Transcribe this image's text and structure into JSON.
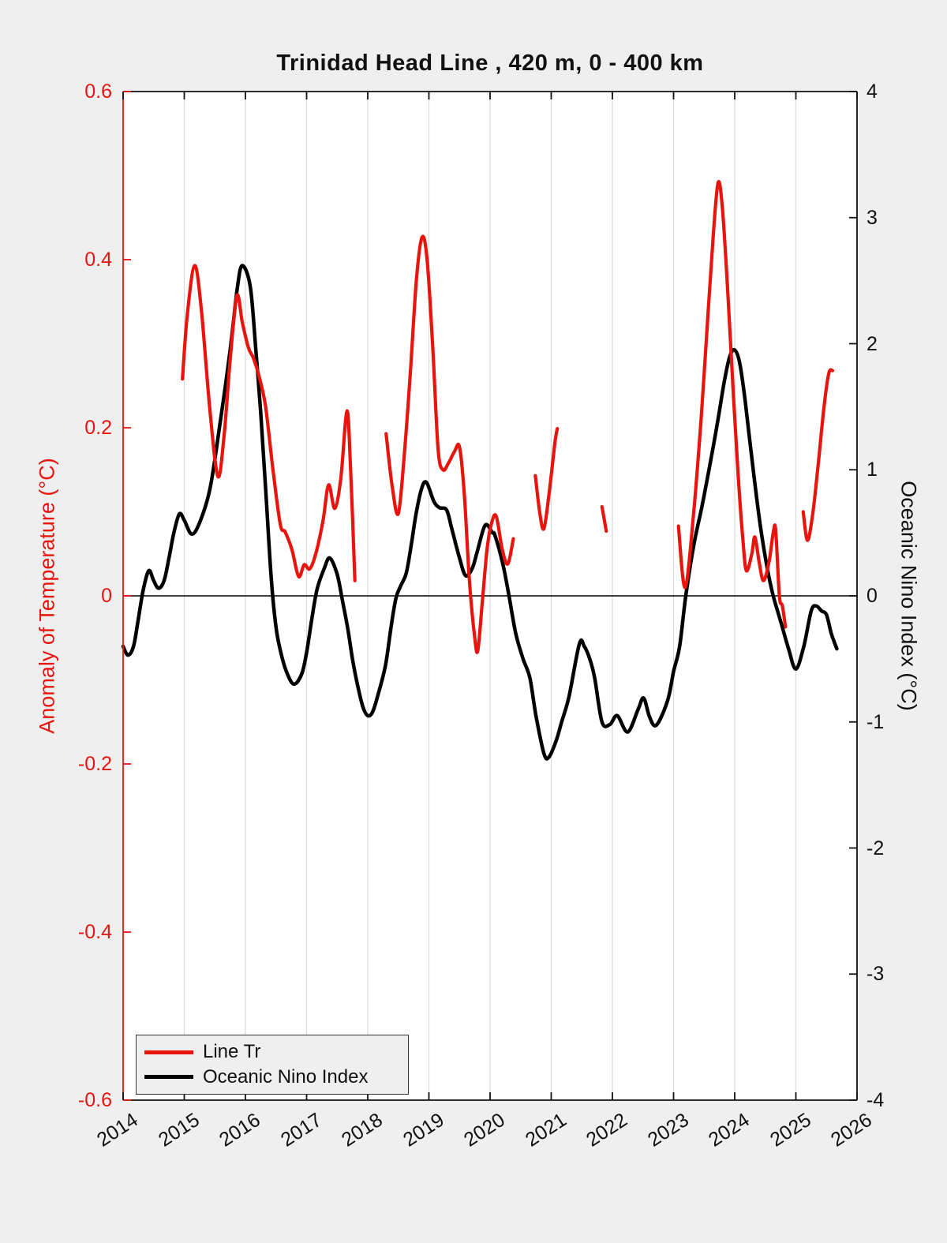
{
  "chart_data": {
    "type": "line",
    "title": "Trinidad Head Line , 420 m, 0 - 400 km",
    "background_color": "#efefef",
    "plot_background": "#ffffff",
    "grid": {
      "vertical": true,
      "horizontal": false,
      "color": "#d9d9d9"
    },
    "zero_line": {
      "shown": true,
      "color": "#000000"
    },
    "x_axis": {
      "range": [
        2014,
        2026
      ],
      "ticks": [
        2014,
        2015,
        2016,
        2017,
        2018,
        2019,
        2020,
        2021,
        2022,
        2023,
        2024,
        2025,
        2026
      ],
      "tick_labels": [
        "2014",
        "2015",
        "2016",
        "2017",
        "2018",
        "2019",
        "2020",
        "2021",
        "2022",
        "2023",
        "2024",
        "2025",
        "2026"
      ],
      "tick_rotation_deg": -33
    },
    "y_left": {
      "label": "Anomaly of Temperature (°C)",
      "color": "#e8150f",
      "range": [
        -0.6,
        0.6
      ],
      "ticks": [
        0.6,
        0.4,
        0.2,
        0,
        -0.2,
        -0.4,
        -0.6
      ],
      "tick_labels": [
        "0.6",
        "0.4",
        "0.2",
        "0",
        "-0.2",
        "-0.4",
        "-0.6"
      ]
    },
    "y_right": {
      "label": "Oceanic Nino Index (°C)",
      "color": "#111111",
      "range": [
        -4,
        4
      ],
      "ticks": [
        4,
        3,
        2,
        1,
        0,
        -1,
        -2,
        -3,
        -4
      ],
      "tick_labels": [
        "4",
        "3",
        "2",
        "1",
        "0",
        "-1",
        "-2",
        "-3",
        "-4"
      ]
    },
    "legend": {
      "position": "bottom-left",
      "entries": [
        {
          "label": "Line Tr",
          "color": "#e8150f"
        },
        {
          "label": "Oceanic Nino Index",
          "color": "#000000"
        }
      ]
    },
    "series": [
      {
        "name": "Oceanic Nino Index",
        "axis": "right",
        "color": "#000000",
        "width": 4.5,
        "segments": [
          [
            [
              2014.0,
              -0.4
            ],
            [
              2014.08,
              -0.47
            ],
            [
              2014.17,
              -0.4
            ],
            [
              2014.25,
              -0.18
            ],
            [
              2014.33,
              0.05
            ],
            [
              2014.42,
              0.2
            ],
            [
              2014.5,
              0.12
            ],
            [
              2014.58,
              0.06
            ],
            [
              2014.67,
              0.12
            ],
            [
              2014.75,
              0.3
            ],
            [
              2014.83,
              0.5
            ],
            [
              2014.92,
              0.65
            ],
            [
              2015.0,
              0.6
            ],
            [
              2015.12,
              0.49
            ],
            [
              2015.25,
              0.58
            ],
            [
              2015.42,
              0.85
            ],
            [
              2015.58,
              1.35
            ],
            [
              2015.75,
              1.95
            ],
            [
              2015.87,
              2.45
            ],
            [
              2015.95,
              2.62
            ],
            [
              2016.08,
              2.45
            ],
            [
              2016.17,
              1.95
            ],
            [
              2016.25,
              1.45
            ],
            [
              2016.33,
              0.85
            ],
            [
              2016.42,
              0.15
            ],
            [
              2016.5,
              -0.25
            ],
            [
              2016.58,
              -0.45
            ],
            [
              2016.67,
              -0.6
            ],
            [
              2016.79,
              -0.7
            ],
            [
              2016.92,
              -0.62
            ],
            [
              2017.0,
              -0.45
            ],
            [
              2017.08,
              -0.2
            ],
            [
              2017.17,
              0.05
            ],
            [
              2017.29,
              0.22
            ],
            [
              2017.38,
              0.3
            ],
            [
              2017.5,
              0.17
            ],
            [
              2017.58,
              -0.02
            ],
            [
              2017.67,
              -0.25
            ],
            [
              2017.75,
              -0.5
            ],
            [
              2017.83,
              -0.7
            ],
            [
              2017.92,
              -0.88
            ],
            [
              2018.0,
              -0.95
            ],
            [
              2018.08,
              -0.92
            ],
            [
              2018.17,
              -0.78
            ],
            [
              2018.29,
              -0.55
            ],
            [
              2018.38,
              -0.25
            ],
            [
              2018.46,
              -0.02
            ],
            [
              2018.54,
              0.08
            ],
            [
              2018.63,
              0.18
            ],
            [
              2018.71,
              0.4
            ],
            [
              2018.79,
              0.65
            ],
            [
              2018.88,
              0.85
            ],
            [
              2018.96,
              0.9
            ],
            [
              2019.08,
              0.75
            ],
            [
              2019.17,
              0.7
            ],
            [
              2019.29,
              0.68
            ],
            [
              2019.38,
              0.52
            ],
            [
              2019.5,
              0.3
            ],
            [
              2019.6,
              0.16
            ],
            [
              2019.71,
              0.22
            ],
            [
              2019.79,
              0.35
            ],
            [
              2019.92,
              0.56
            ],
            [
              2020.04,
              0.5
            ],
            [
              2020.08,
              0.48
            ],
            [
              2020.21,
              0.25
            ],
            [
              2020.31,
              0.0
            ],
            [
              2020.42,
              -0.3
            ],
            [
              2020.54,
              -0.5
            ],
            [
              2020.65,
              -0.65
            ],
            [
              2020.75,
              -0.95
            ],
            [
              2020.88,
              -1.25
            ],
            [
              2020.96,
              -1.28
            ],
            [
              2021.08,
              -1.15
            ],
            [
              2021.17,
              -1.0
            ],
            [
              2021.29,
              -0.8
            ],
            [
              2021.46,
              -0.38
            ],
            [
              2021.54,
              -0.4
            ],
            [
              2021.63,
              -0.5
            ],
            [
              2021.71,
              -0.65
            ],
            [
              2021.83,
              -1.0
            ],
            [
              2021.96,
              -1.02
            ],
            [
              2022.08,
              -0.95
            ],
            [
              2022.25,
              -1.08
            ],
            [
              2022.42,
              -0.9
            ],
            [
              2022.51,
              -0.81
            ],
            [
              2022.6,
              -0.95
            ],
            [
              2022.69,
              -1.03
            ],
            [
              2022.79,
              -0.97
            ],
            [
              2022.92,
              -0.8
            ],
            [
              2023.0,
              -0.6
            ],
            [
              2023.1,
              -0.4
            ],
            [
              2023.2,
              0.0
            ],
            [
              2023.33,
              0.4
            ],
            [
              2023.46,
              0.7
            ],
            [
              2023.58,
              1.0
            ],
            [
              2023.71,
              1.35
            ],
            [
              2023.83,
              1.7
            ],
            [
              2023.92,
              1.9
            ],
            [
              2024.0,
              1.95
            ],
            [
              2024.08,
              1.85
            ],
            [
              2024.17,
              1.55
            ],
            [
              2024.29,
              1.05
            ],
            [
              2024.42,
              0.55
            ],
            [
              2024.54,
              0.2
            ],
            [
              2024.63,
              0.0
            ],
            [
              2024.75,
              -0.2
            ],
            [
              2024.88,
              -0.42
            ],
            [
              2025.0,
              -0.58
            ],
            [
              2025.13,
              -0.4
            ],
            [
              2025.25,
              -0.12
            ],
            [
              2025.33,
              -0.08
            ],
            [
              2025.42,
              -0.12
            ],
            [
              2025.5,
              -0.15
            ],
            [
              2025.58,
              -0.3
            ],
            [
              2025.67,
              -0.42
            ]
          ]
        ]
      },
      {
        "name": "Line Tr",
        "axis": "left",
        "color": "#e8150f",
        "width": 4.2,
        "segments": [
          [
            [
              2014.97,
              0.258
            ],
            [
              2015.05,
              0.335
            ],
            [
              2015.17,
              0.393
            ],
            [
              2015.28,
              0.34
            ],
            [
              2015.42,
              0.22
            ],
            [
              2015.55,
              0.142
            ],
            [
              2015.65,
              0.19
            ],
            [
              2015.75,
              0.28
            ],
            [
              2015.86,
              0.357
            ],
            [
              2015.95,
              0.325
            ],
            [
              2016.05,
              0.295
            ],
            [
              2016.13,
              0.283
            ],
            [
              2016.22,
              0.262
            ],
            [
              2016.33,
              0.225
            ],
            [
              2016.45,
              0.15
            ],
            [
              2016.57,
              0.085
            ],
            [
              2016.65,
              0.076
            ],
            [
              2016.76,
              0.055
            ],
            [
              2016.87,
              0.023
            ],
            [
              2016.96,
              0.037
            ],
            [
              2017.05,
              0.032
            ],
            [
              2017.15,
              0.05
            ],
            [
              2017.27,
              0.09
            ],
            [
              2017.36,
              0.132
            ],
            [
              2017.46,
              0.104
            ],
            [
              2017.56,
              0.14
            ],
            [
              2017.66,
              0.22
            ],
            [
              2017.72,
              0.15
            ],
            [
              2017.79,
              0.018
            ]
          ],
          [
            [
              2018.3,
              0.193
            ],
            [
              2018.4,
              0.13
            ],
            [
              2018.5,
              0.098
            ],
            [
              2018.6,
              0.17
            ],
            [
              2018.7,
              0.27
            ],
            [
              2018.8,
              0.38
            ],
            [
              2018.89,
              0.427
            ],
            [
              2018.97,
              0.4
            ],
            [
              2019.06,
              0.3
            ],
            [
              2019.15,
              0.175
            ],
            [
              2019.23,
              0.15
            ],
            [
              2019.32,
              0.158
            ],
            [
              2019.42,
              0.172
            ],
            [
              2019.5,
              0.177
            ],
            [
              2019.58,
              0.12
            ],
            [
              2019.66,
              0.02
            ],
            [
              2019.75,
              -0.05
            ],
            [
              2019.8,
              -0.065
            ],
            [
              2019.87,
              -0.01
            ],
            [
              2019.95,
              0.055
            ],
            [
              2020.02,
              0.085
            ],
            [
              2020.1,
              0.095
            ],
            [
              2020.2,
              0.055
            ],
            [
              2020.29,
              0.038
            ],
            [
              2020.38,
              0.068
            ]
          ],
          [
            [
              2020.74,
              0.143
            ],
            [
              2020.81,
              0.1
            ],
            [
              2020.88,
              0.08
            ],
            [
              2020.97,
              0.125
            ],
            [
              2021.06,
              0.182
            ],
            [
              2021.1,
              0.199
            ]
          ],
          [
            [
              2021.83,
              0.106
            ],
            [
              2021.9,
              0.077
            ]
          ],
          [
            [
              2023.08,
              0.083
            ],
            [
              2023.19,
              0.01
            ],
            [
              2023.33,
              0.1
            ],
            [
              2023.45,
              0.21
            ],
            [
              2023.55,
              0.32
            ],
            [
              2023.65,
              0.43
            ],
            [
              2023.73,
              0.492
            ],
            [
              2023.8,
              0.46
            ],
            [
              2023.88,
              0.37
            ],
            [
              2023.97,
              0.25
            ],
            [
              2024.06,
              0.14
            ],
            [
              2024.13,
              0.07
            ],
            [
              2024.19,
              0.03
            ],
            [
              2024.28,
              0.05
            ],
            [
              2024.33,
              0.07
            ],
            [
              2024.4,
              0.04
            ],
            [
              2024.47,
              0.018
            ],
            [
              2024.56,
              0.04
            ],
            [
              2024.63,
              0.075
            ],
            [
              2024.67,
              0.078
            ],
            [
              2024.73,
              0.0
            ],
            [
              2024.78,
              -0.012
            ],
            [
              2024.83,
              -0.037
            ]
          ],
          [
            [
              2025.12,
              0.1
            ],
            [
              2025.19,
              0.066
            ],
            [
              2025.28,
              0.1
            ],
            [
              2025.37,
              0.16
            ],
            [
              2025.46,
              0.225
            ],
            [
              2025.54,
              0.265
            ],
            [
              2025.6,
              0.268
            ]
          ]
        ]
      }
    ]
  }
}
